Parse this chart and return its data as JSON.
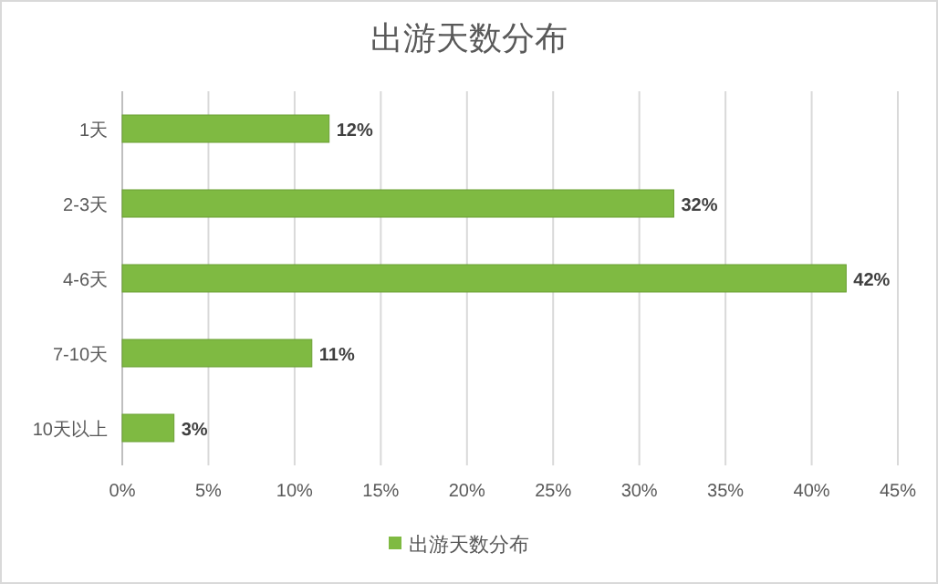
{
  "chart_data": {
    "type": "bar",
    "orientation": "horizontal",
    "title": "出游天数分布",
    "categories": [
      "1天",
      "2-3天",
      "4-6天",
      "7-10天",
      "10天以上"
    ],
    "series": [
      {
        "name": "出游天数分布",
        "color": "#7fba42",
        "values": [
          12,
          32,
          42,
          11,
          3
        ],
        "value_labels": [
          "12%",
          "32%",
          "42%",
          "11%",
          "3%"
        ]
      }
    ],
    "xlim": [
      0,
      45
    ],
    "xticks": [
      {
        "value": 0,
        "label": "0%"
      },
      {
        "value": 5,
        "label": "5%"
      },
      {
        "value": 10,
        "label": "10%"
      },
      {
        "value": 15,
        "label": "15%"
      },
      {
        "value": 20,
        "label": "20%"
      },
      {
        "value": 25,
        "label": "25%"
      },
      {
        "value": 30,
        "label": "30%"
      },
      {
        "value": 35,
        "label": "35%"
      },
      {
        "value": 40,
        "label": "40%"
      },
      {
        "value": 45,
        "label": "45%"
      }
    ],
    "grid": "x",
    "legend": "bottom"
  }
}
